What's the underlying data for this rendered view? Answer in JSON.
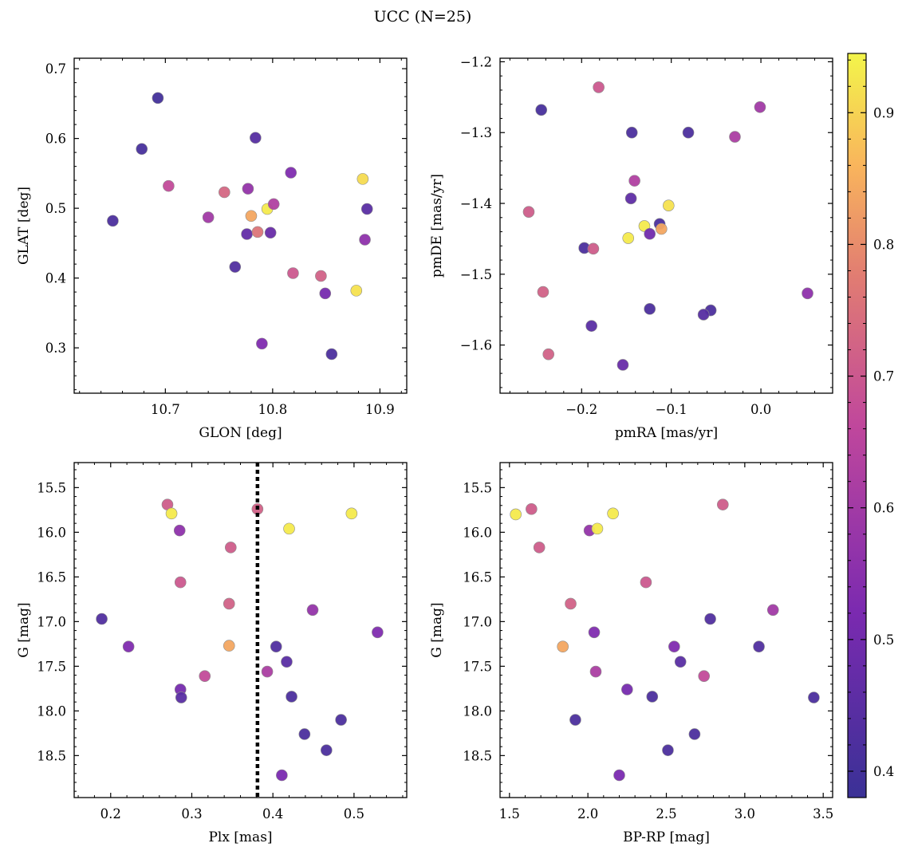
{
  "figure": {
    "title": "UCC (N=25)"
  },
  "chart_data": [
    {
      "type": "scatter",
      "xlabel": "GLON [deg]",
      "ylabel": "GLAT [deg]",
      "xlim": [
        10.615,
        10.925
      ],
      "ylim": [
        0.235,
        0.715
      ],
      "xticks": [
        10.7,
        10.8,
        10.9
      ],
      "xticklabels": [
        "10.7",
        "10.8",
        "10.9"
      ],
      "yticks": [
        0.3,
        0.4,
        0.5,
        0.6,
        0.7
      ],
      "yticklabels": [
        "0.3",
        "0.4",
        "0.5",
        "0.6",
        "0.7"
      ],
      "x": [
        10.693,
        10.678,
        10.651,
        10.703,
        10.74,
        10.755,
        10.765,
        10.776,
        10.777,
        10.78,
        10.784,
        10.786,
        10.79,
        10.795,
        10.798,
        10.801,
        10.817,
        10.819,
        10.845,
        10.849,
        10.855,
        10.878,
        10.884,
        10.886,
        10.888
      ],
      "y": [
        0.658,
        0.585,
        0.482,
        0.532,
        0.487,
        0.523,
        0.416,
        0.463,
        0.528,
        0.489,
        0.601,
        0.466,
        0.306,
        0.499,
        0.465,
        0.506,
        0.551,
        0.407,
        0.403,
        0.378,
        0.291,
        0.382,
        0.542,
        0.455,
        0.499
      ],
      "c": [
        0.4,
        0.41,
        0.42,
        0.67,
        0.6,
        0.73,
        0.43,
        0.47,
        0.57,
        0.84,
        0.44,
        0.76,
        0.53,
        0.93,
        0.48,
        0.63,
        0.53,
        0.7,
        0.72,
        0.51,
        0.42,
        0.92,
        0.91,
        0.56,
        0.45
      ]
    },
    {
      "type": "scatter",
      "xlabel": "pmRA [mas/yr]",
      "ylabel": "pmDE [mas/yr]",
      "xlim": [
        -0.291,
        0.08
      ],
      "ylim": [
        -1.668,
        -1.195
      ],
      "xticks": [
        -0.2,
        -0.1,
        0.0
      ],
      "xticklabels": [
        "−0.2",
        "−0.1",
        "0.0"
      ],
      "yticks": [
        -1.6,
        -1.5,
        -1.4,
        -1.3,
        -1.2
      ],
      "yticklabels": [
        "−1.6",
        "−1.5",
        "−1.4",
        "−1.3",
        "−1.2"
      ],
      "x": [
        -0.245,
        -0.181,
        -0.144,
        -0.081,
        -0.001,
        -0.029,
        -0.259,
        -0.141,
        -0.145,
        -0.103,
        -0.13,
        -0.113,
        -0.111,
        -0.124,
        -0.148,
        -0.197,
        -0.187,
        -0.243,
        -0.189,
        -0.124,
        -0.056,
        -0.064,
        0.052,
        -0.237,
        -0.154
      ],
      "y": [
        -1.268,
        -1.236,
        -1.3,
        -1.3,
        -1.264,
        -1.306,
        -1.412,
        -1.368,
        -1.393,
        -1.403,
        -1.432,
        -1.429,
        -1.436,
        -1.443,
        -1.449,
        -1.463,
        -1.464,
        -1.525,
        -1.573,
        -1.549,
        -1.551,
        -1.557,
        -1.527,
        -1.613,
        -1.628
      ],
      "c": [
        0.41,
        0.7,
        0.42,
        0.42,
        0.6,
        0.62,
        0.71,
        0.63,
        0.46,
        0.92,
        0.93,
        0.42,
        0.84,
        0.5,
        0.93,
        0.42,
        0.71,
        0.72,
        0.45,
        0.42,
        0.42,
        0.44,
        0.56,
        0.72,
        0.48
      ]
    },
    {
      "type": "scatter",
      "xlabel": "Plx [mas]",
      "ylabel": "G [mag]",
      "xlim": [
        0.155,
        0.565
      ],
      "ylim": [
        18.97,
        15.22
      ],
      "xticks": [
        0.2,
        0.3,
        0.4,
        0.5
      ],
      "xticklabels": [
        "0.2",
        "0.3",
        "0.4",
        "0.5"
      ],
      "yticks": [
        15.5,
        16.0,
        16.5,
        17.0,
        17.5,
        18.0,
        18.5
      ],
      "yticklabels": [
        "15.5",
        "16.0",
        "16.5",
        "17.0",
        "17.5",
        "18.0",
        "18.5"
      ],
      "vline": 0.381,
      "x": [
        0.27,
        0.275,
        0.285,
        0.348,
        0.381,
        0.42,
        0.497,
        0.286,
        0.346,
        0.189,
        0.222,
        0.449,
        0.529,
        0.346,
        0.404,
        0.417,
        0.393,
        0.316,
        0.286,
        0.287,
        0.423,
        0.484,
        0.439,
        0.466,
        0.411
      ],
      "y": [
        15.69,
        15.79,
        15.98,
        16.17,
        15.74,
        15.96,
        15.79,
        16.56,
        16.8,
        16.97,
        17.28,
        16.87,
        17.12,
        17.27,
        17.28,
        17.45,
        17.56,
        17.61,
        17.76,
        17.85,
        17.84,
        18.1,
        18.26,
        18.44,
        18.72
      ],
      "c": [
        0.71,
        0.93,
        0.56,
        0.71,
        0.72,
        0.93,
        0.93,
        0.7,
        0.72,
        0.43,
        0.53,
        0.57,
        0.53,
        0.84,
        0.43,
        0.45,
        0.62,
        0.67,
        0.51,
        0.45,
        0.42,
        0.42,
        0.42,
        0.42,
        0.52
      ]
    },
    {
      "type": "scatter",
      "xlabel": "BP-RP [mag]",
      "ylabel": "G [mag]",
      "xlim": [
        1.44,
        3.56
      ],
      "ylim": [
        18.97,
        15.22
      ],
      "xticks": [
        1.5,
        2.0,
        2.5,
        3.0,
        3.5
      ],
      "xticklabels": [
        "1.5",
        "2.0",
        "2.5",
        "3.0",
        "3.5"
      ],
      "yticks": [
        15.5,
        16.0,
        16.5,
        17.0,
        17.5,
        18.0,
        18.5
      ],
      "yticklabels": [
        "15.5",
        "16.0",
        "16.5",
        "17.0",
        "17.5",
        "18.0",
        "18.5"
      ],
      "x": [
        1.54,
        1.64,
        1.69,
        2.01,
        2.06,
        2.16,
        2.86,
        2.37,
        1.89,
        2.78,
        3.18,
        1.84,
        2.04,
        2.55,
        2.05,
        2.59,
        3.09,
        2.74,
        2.25,
        2.41,
        3.44,
        1.92,
        2.68,
        2.51,
        2.2
      ],
      "y": [
        15.8,
        15.74,
        16.17,
        15.98,
        15.96,
        15.79,
        15.69,
        16.56,
        16.8,
        16.97,
        16.87,
        17.28,
        17.12,
        17.28,
        17.56,
        17.45,
        17.28,
        17.61,
        17.76,
        17.84,
        17.85,
        18.1,
        18.26,
        18.44,
        18.72
      ],
      "c": [
        0.93,
        0.71,
        0.71,
        0.57,
        0.93,
        0.93,
        0.71,
        0.7,
        0.72,
        0.43,
        0.6,
        0.84,
        0.53,
        0.53,
        0.62,
        0.45,
        0.43,
        0.67,
        0.51,
        0.42,
        0.42,
        0.42,
        0.42,
        0.42,
        0.52
      ]
    }
  ],
  "colorbar": {
    "cmap": "plasma",
    "range": [
      0.38,
      0.945
    ],
    "ticks": [
      0.4,
      0.5,
      0.6,
      0.7,
      0.8,
      0.9
    ],
    "ticklabels": [
      "0.4",
      "0.5",
      "0.6",
      "0.7",
      "0.8",
      "0.9"
    ]
  },
  "style": {
    "marker_edge": "#8c8c8c",
    "vline_color": "#000000"
  }
}
